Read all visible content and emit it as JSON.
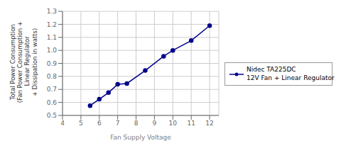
{
  "chart_data": {
    "type": "line",
    "x": [
      5.5,
      6.0,
      6.5,
      7.0,
      7.5,
      8.5,
      9.5,
      10.0,
      11.0,
      12.0
    ],
    "series": [
      {
        "name": "Nidec TA225DC\n12V Fan + Linear Regulator",
        "color": "#00008B",
        "marker": "circle",
        "values": [
          0.575,
          0.625,
          0.675,
          0.74,
          0.745,
          0.845,
          0.955,
          1.0,
          1.075,
          1.19
        ]
      }
    ],
    "xlabel": "Fan Supply Voltage",
    "ylabel": "Total Power Consumption\n(Fan Power Consumption +\n Linear Regulator\n+ Dissipation in watts)",
    "xlim": [
      4,
      12.5
    ],
    "ylim": [
      0.5,
      1.3
    ],
    "xticks": [
      4,
      5,
      6,
      7,
      8,
      9,
      10,
      11,
      12
    ],
    "yticks": [
      0.5,
      0.6,
      0.7,
      0.8,
      0.9,
      {
        "value": 1.0,
        "label": "1.0"
      },
      1.1,
      1.2,
      1.3
    ],
    "grid": true,
    "legend": "right"
  }
}
